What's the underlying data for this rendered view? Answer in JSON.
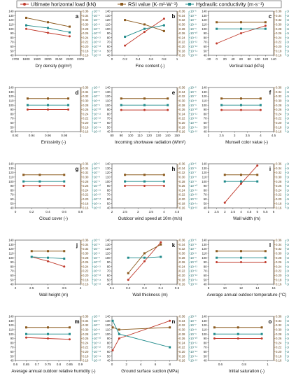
{
  "legend": {
    "items": [
      {
        "label": "Ultimate horizontal load (kN)",
        "color": "#c0392b",
        "marker": "circle"
      },
      {
        "label": "RSI value (K·m²·W⁻¹)",
        "color": "#8b5a1e",
        "marker": "square"
      },
      {
        "label": "Hydraulic conductivity (m·s⁻¹)",
        "color": "#1f8a8a",
        "marker": "square"
      }
    ]
  },
  "colors": {
    "load": "#c0392b",
    "rsi": "#8b5a1e",
    "hyd": "#1f8a8a"
  },
  "chart_data": [
    {
      "type": "line",
      "letter": "a",
      "xlabel": "Dry density (kg/m³)",
      "xticks": [
        1700,
        1800,
        1900,
        2000,
        2100,
        2200,
        2300
      ],
      "xlim": [
        1700,
        2300
      ],
      "x": [
        1800,
        2000,
        2200
      ],
      "series": [
        {
          "name": "Ultimate horizontal load (kN)",
          "values": [
            100,
            91,
            83
          ]
        },
        {
          "name": "RSI value (K·m²·W⁻¹)",
          "values": [
            0.33,
            0.31,
            0.29
          ]
        },
        {
          "name": "Hydraulic conductivity (m·s⁻¹)",
          "values": [
            -8.2,
            -8.8,
            -9.8
          ]
        }
      ]
    },
    {
      "type": "line",
      "letter": "b",
      "xlabel": "Fine content (-)",
      "xticks": [
        0.0,
        0.2,
        0.4,
        0.6,
        0.8,
        1.0
      ],
      "xlim": [
        0,
        1.0
      ],
      "x": [
        0.2,
        0.5,
        0.8
      ],
      "series": [
        {
          "name": "Ultimate horizontal load (kN)",
          "values": [
            62,
            93,
            123
          ]
        },
        {
          "name": "RSI value (K·m²·W⁻¹)",
          "values": [
            0.32,
            0.3,
            0.27
          ]
        },
        {
          "name": "Hydraulic conductivity (m·s⁻¹)",
          "values": [
            -10.8,
            -9.0,
            -8.2
          ]
        }
      ]
    },
    {
      "type": "line",
      "letter": "c",
      "xlabel": "Vertical load (kPa)",
      "xticks": [
        -20,
        0,
        20,
        40,
        60,
        80,
        100,
        120,
        140
      ],
      "xlim": [
        -20,
        140
      ],
      "x": [
        0,
        60,
        120
      ],
      "series": [
        {
          "name": "Ultimate horizontal load (kN)",
          "values": [
            67,
            90,
            107
          ]
        },
        {
          "name": "RSI value (K·m²·W⁻¹)",
          "values": [
            0.31,
            0.31,
            0.31
          ]
        },
        {
          "name": "Hydraulic conductivity (m·s⁻¹)",
          "values": [
            -9.0,
            -9.0,
            -9.0
          ]
        }
      ]
    },
    {
      "type": "line",
      "letter": "d",
      "xlabel": "Emissivity (-)",
      "xticks": [
        0.92,
        0.94,
        0.96,
        0.98,
        1.0
      ],
      "xlim": [
        0.92,
        1.0
      ],
      "x": [
        0.935,
        0.96,
        0.985
      ],
      "series": [
        {
          "name": "Ultimate horizontal load (kN)",
          "values": [
            90,
            90,
            90
          ]
        },
        {
          "name": "RSI value (K·m²·W⁻¹)",
          "values": [
            0.31,
            0.31,
            0.31
          ]
        },
        {
          "name": "Hydraulic conductivity (m·s⁻¹)",
          "values": [
            -9.0,
            -9.0,
            -9.0
          ]
        }
      ]
    },
    {
      "type": "line",
      "letter": "e",
      "xlabel": "Incoming shortwave radiation (W/m²)",
      "xticks": [
        80,
        90,
        100,
        110,
        120,
        130,
        140,
        150
      ],
      "xlim": [
        80,
        150
      ],
      "x": [
        90,
        115,
        140
      ],
      "series": [
        {
          "name": "Ultimate horizontal load (kN)",
          "values": [
            89,
            89,
            89
          ]
        },
        {
          "name": "RSI value (K·m²·W⁻¹)",
          "values": [
            0.31,
            0.31,
            0.31
          ]
        },
        {
          "name": "Hydraulic conductivity (m·s⁻¹)",
          "values": [
            -9.0,
            -9.0,
            -9.0
          ]
        }
      ]
    },
    {
      "type": "line",
      "letter": "f",
      "xlabel": "Munsell color value (-)",
      "xticks": [
        2.0,
        2.5,
        3.0,
        3.5,
        4.0,
        4.5
      ],
      "xlim": [
        2.0,
        4.5
      ],
      "x": [
        2.5,
        3.25,
        4.0
      ],
      "series": [
        {
          "name": "Ultimate horizontal load (kN)",
          "values": [
            89,
            89,
            89
          ]
        },
        {
          "name": "RSI value (K·m²·W⁻¹)",
          "values": [
            0.31,
            0.31,
            0.31
          ]
        },
        {
          "name": "Hydraulic conductivity (m·s⁻¹)",
          "values": [
            -9.0,
            -9.0,
            -9.0
          ]
        }
      ]
    },
    {
      "type": "line",
      "letter": "g",
      "xlabel": "Cloud cover (-)",
      "xticks": [
        0.0,
        0.2,
        0.4,
        0.6,
        0.8
      ],
      "xlim": [
        0,
        0.8
      ],
      "x": [
        0.1,
        0.3,
        0.6
      ],
      "series": [
        {
          "name": "Ultimate horizontal load (kN)",
          "values": [
            90,
            90,
            90
          ]
        },
        {
          "name": "RSI value (K·m²·W⁻¹)",
          "values": [
            0.31,
            0.31,
            0.31
          ]
        },
        {
          "name": "Hydraulic conductivity (m·s⁻¹)",
          "values": [
            -9.0,
            -9.0,
            -9.0
          ]
        }
      ]
    },
    {
      "type": "line",
      "letter": "h",
      "xlabel": "Outdoor wind speed at 10m (m/s)",
      "xticks": [
        2.0,
        2.5,
        3.0,
        3.5,
        4.0,
        4.5
      ],
      "xlim": [
        2.0,
        4.5
      ],
      "x": [
        2.5,
        3.25,
        4.0
      ],
      "series": [
        {
          "name": "Ultimate horizontal load (kN)",
          "values": [
            90,
            90,
            90
          ]
        },
        {
          "name": "RSI value (K·m²·W⁻¹)",
          "values": [
            0.31,
            0.31,
            0.31
          ]
        },
        {
          "name": "Hydraulic conductivity (m·s⁻¹)",
          "values": [
            -9.0,
            -9.0,
            -9.0
          ]
        }
      ]
    },
    {
      "type": "line",
      "letter": "i",
      "xlabel": "Wall width (m)",
      "xticks": [
        2.0,
        2.5,
        3.0,
        3.5,
        4.0,
        4.5,
        5.0,
        5.5,
        6.0
      ],
      "xlim": [
        2.0,
        6.0
      ],
      "x": [
        3.0,
        4.0,
        5.0
      ],
      "series": [
        {
          "name": "Ultimate horizontal load (kN)",
          "values": [
            52,
            95,
            136
          ]
        },
        {
          "name": "RSI value (K·m²·W⁻¹)",
          "values": [
            0.31,
            0.31,
            0.31
          ]
        },
        {
          "name": "Hydraulic conductivity (m·s⁻¹)",
          "values": [
            -9.0,
            -9.0,
            -9.0
          ]
        }
      ]
    },
    {
      "type": "line",
      "letter": "j",
      "xlabel": "Wall height (m)",
      "xticks": [
        2.0,
        2.5,
        3.0,
        3.5,
        4.0
      ],
      "xlim": [
        2.0,
        4.0
      ],
      "x": [
        2.5,
        3.0,
        3.5
      ],
      "series": [
        {
          "name": "Ultimate horizontal load (kN)",
          "values": [
            102,
            92,
            80
          ]
        },
        {
          "name": "RSI value (K·m²·W⁻¹)",
          "values": [
            0.31,
            0.31,
            0.31
          ]
        },
        {
          "name": "Hydraulic conductivity (m·s⁻¹)",
          "values": [
            -8.8,
            -9.0,
            -9.2
          ]
        }
      ]
    },
    {
      "type": "line",
      "letter": "k",
      "xlabel": "Wall thickness (m)",
      "xticks": [
        0.1,
        0.2,
        0.3,
        0.4,
        0.5
      ],
      "xlim": [
        0.1,
        0.5
      ],
      "x": [
        0.2,
        0.3,
        0.4
      ],
      "series": [
        {
          "name": "Ultimate horizontal load (kN)",
          "values": [
            50,
            92,
            135
          ]
        },
        {
          "name": "RSI value (K·m²·W⁻¹)",
          "values": [
            0.21,
            0.3,
            0.34
          ]
        },
        {
          "name": "Hydraulic conductivity (m·s⁻¹)",
          "values": [
            -9.0,
            -9.0,
            -8.8
          ]
        }
      ]
    },
    {
      "type": "line",
      "letter": "l",
      "xlabel": "Average annual outdoor temperature (°C)",
      "xticks": [
        8,
        10,
        12,
        14,
        16
      ],
      "xlim": [
        8,
        16
      ],
      "x": [
        9,
        12,
        15
      ],
      "series": [
        {
          "name": "Ultimate horizontal load (kN)",
          "values": [
            90,
            90,
            90
          ]
        },
        {
          "name": "RSI value (K·m²·W⁻¹)",
          "values": [
            0.31,
            0.31,
            0.31
          ]
        },
        {
          "name": "Hydraulic conductivity (m·s⁻¹)",
          "values": [
            -9.0,
            -9.0,
            -9.0
          ]
        }
      ]
    },
    {
      "type": "line",
      "letter": "m",
      "xlabel": "Average annual outdoor relative humidity (-)",
      "xticks": [
        0.6,
        0.65,
        0.7,
        0.75,
        0.8,
        0.85,
        0.9
      ],
      "xlim": [
        0.6,
        0.9
      ],
      "x": [
        0.65,
        0.75,
        0.85
      ],
      "series": [
        {
          "name": "Ultimate horizontal load (kN)",
          "values": [
            92,
            90,
            88
          ]
        },
        {
          "name": "RSI value (K·m²·W⁻¹)",
          "values": [
            0.31,
            0.31,
            0.31
          ]
        },
        {
          "name": "Hydraulic conductivity (m·s⁻¹)",
          "values": [
            -9.0,
            -9.0,
            -9.0
          ]
        }
      ]
    },
    {
      "type": "line",
      "letter": "n",
      "xlabel": "Ground surface suction (MPa)",
      "xticks": [
        0,
        2,
        4,
        6,
        8
      ],
      "xlim": [
        0,
        9
      ],
      "x": [
        0.1,
        1.0,
        8.0
      ],
      "series": [
        {
          "name": "Ultimate horizontal load (kN)",
          "values": [
            63,
            90,
            130
          ]
        },
        {
          "name": "RSI value (K·m²·W⁻¹)",
          "values": [
            0.31,
            0.3,
            0.31
          ]
        },
        {
          "name": "Hydraulic conductivity (m·s⁻¹)",
          "values": [
            -6.0,
            -9.0,
            -12.0
          ]
        }
      ]
    },
    {
      "type": "line",
      "letter": "o",
      "xlabel": "Initial saturation (-)",
      "xticks": [
        0.6,
        0.8,
        1.0
      ],
      "xlim": [
        0.5,
        1.05
      ],
      "x": [
        0.55,
        0.75,
        0.95
      ],
      "series": [
        {
          "name": "Ultimate horizontal load (kN)",
          "values": [
            90,
            90,
            90
          ]
        },
        {
          "name": "RSI value (K·m²·W⁻¹)",
          "values": [
            0.31,
            0.31,
            0.31
          ]
        },
        {
          "name": "Hydraulic conductivity (m·s⁻¹)",
          "values": [
            -9.0,
            -9.0,
            -9.0
          ]
        }
      ]
    }
  ],
  "shared_axes": {
    "left": {
      "ylim": [
        40,
        140
      ],
      "ticks": [
        "40",
        "50",
        "60",
        "70",
        "80",
        "90",
        "100",
        "110",
        "120",
        "130",
        "140"
      ]
    },
    "mid": {
      "ylim": [
        0.16,
        0.36
      ],
      "ticks": [
        "0.16",
        "0.18",
        "0.20",
        "0.22",
        "0.24",
        "0.26",
        "0.28",
        "0.30",
        "0.32",
        "0.34",
        "0.36"
      ]
    },
    "right": {
      "ylim": [
        -15,
        -5
      ],
      "ticks": [
        "10⁻¹⁵",
        "10⁻¹⁴",
        "10⁻¹³",
        "10⁻¹²",
        "10⁻¹¹",
        "10⁻¹⁰",
        "10⁻⁹",
        "10⁻⁸",
        "10⁻⁷",
        "10⁻⁶",
        "10⁻⁵"
      ]
    }
  }
}
